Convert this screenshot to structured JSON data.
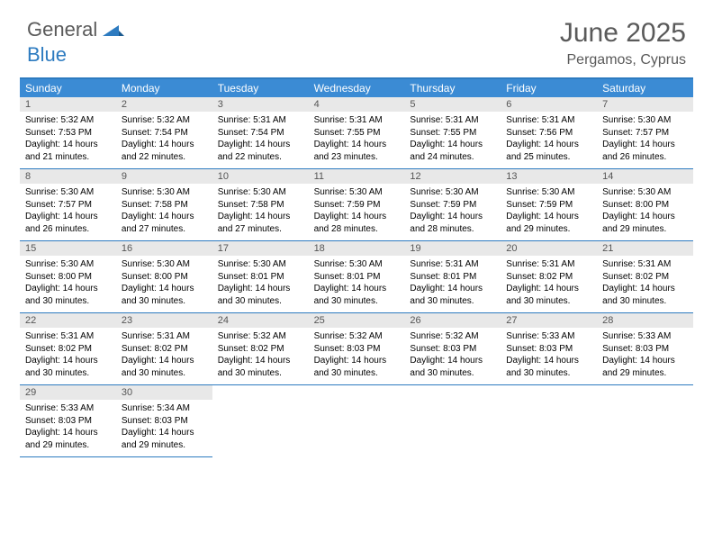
{
  "logo": {
    "text1": "General",
    "text2": "Blue"
  },
  "title": "June 2025",
  "location": "Pergamos, Cyprus",
  "colors": {
    "brand_blue": "#2d7bc0",
    "header_blue": "#3b8bd4",
    "gray_text": "#5a5a5a",
    "daynum_bg": "#e8e8e8"
  },
  "weekdays": [
    "Sunday",
    "Monday",
    "Tuesday",
    "Wednesday",
    "Thursday",
    "Friday",
    "Saturday"
  ],
  "days": [
    {
      "n": "1",
      "sr": "5:32 AM",
      "ss": "7:53 PM",
      "dl": "14 hours and 21 minutes."
    },
    {
      "n": "2",
      "sr": "5:32 AM",
      "ss": "7:54 PM",
      "dl": "14 hours and 22 minutes."
    },
    {
      "n": "3",
      "sr": "5:31 AM",
      "ss": "7:54 PM",
      "dl": "14 hours and 22 minutes."
    },
    {
      "n": "4",
      "sr": "5:31 AM",
      "ss": "7:55 PM",
      "dl": "14 hours and 23 minutes."
    },
    {
      "n": "5",
      "sr": "5:31 AM",
      "ss": "7:55 PM",
      "dl": "14 hours and 24 minutes."
    },
    {
      "n": "6",
      "sr": "5:31 AM",
      "ss": "7:56 PM",
      "dl": "14 hours and 25 minutes."
    },
    {
      "n": "7",
      "sr": "5:30 AM",
      "ss": "7:57 PM",
      "dl": "14 hours and 26 minutes."
    },
    {
      "n": "8",
      "sr": "5:30 AM",
      "ss": "7:57 PM",
      "dl": "14 hours and 26 minutes."
    },
    {
      "n": "9",
      "sr": "5:30 AM",
      "ss": "7:58 PM",
      "dl": "14 hours and 27 minutes."
    },
    {
      "n": "10",
      "sr": "5:30 AM",
      "ss": "7:58 PM",
      "dl": "14 hours and 27 minutes."
    },
    {
      "n": "11",
      "sr": "5:30 AM",
      "ss": "7:59 PM",
      "dl": "14 hours and 28 minutes."
    },
    {
      "n": "12",
      "sr": "5:30 AM",
      "ss": "7:59 PM",
      "dl": "14 hours and 28 minutes."
    },
    {
      "n": "13",
      "sr": "5:30 AM",
      "ss": "7:59 PM",
      "dl": "14 hours and 29 minutes."
    },
    {
      "n": "14",
      "sr": "5:30 AM",
      "ss": "8:00 PM",
      "dl": "14 hours and 29 minutes."
    },
    {
      "n": "15",
      "sr": "5:30 AM",
      "ss": "8:00 PM",
      "dl": "14 hours and 30 minutes."
    },
    {
      "n": "16",
      "sr": "5:30 AM",
      "ss": "8:00 PM",
      "dl": "14 hours and 30 minutes."
    },
    {
      "n": "17",
      "sr": "5:30 AM",
      "ss": "8:01 PM",
      "dl": "14 hours and 30 minutes."
    },
    {
      "n": "18",
      "sr": "5:30 AM",
      "ss": "8:01 PM",
      "dl": "14 hours and 30 minutes."
    },
    {
      "n": "19",
      "sr": "5:31 AM",
      "ss": "8:01 PM",
      "dl": "14 hours and 30 minutes."
    },
    {
      "n": "20",
      "sr": "5:31 AM",
      "ss": "8:02 PM",
      "dl": "14 hours and 30 minutes."
    },
    {
      "n": "21",
      "sr": "5:31 AM",
      "ss": "8:02 PM",
      "dl": "14 hours and 30 minutes."
    },
    {
      "n": "22",
      "sr": "5:31 AM",
      "ss": "8:02 PM",
      "dl": "14 hours and 30 minutes."
    },
    {
      "n": "23",
      "sr": "5:31 AM",
      "ss": "8:02 PM",
      "dl": "14 hours and 30 minutes."
    },
    {
      "n": "24",
      "sr": "5:32 AM",
      "ss": "8:02 PM",
      "dl": "14 hours and 30 minutes."
    },
    {
      "n": "25",
      "sr": "5:32 AM",
      "ss": "8:03 PM",
      "dl": "14 hours and 30 minutes."
    },
    {
      "n": "26",
      "sr": "5:32 AM",
      "ss": "8:03 PM",
      "dl": "14 hours and 30 minutes."
    },
    {
      "n": "27",
      "sr": "5:33 AM",
      "ss": "8:03 PM",
      "dl": "14 hours and 30 minutes."
    },
    {
      "n": "28",
      "sr": "5:33 AM",
      "ss": "8:03 PM",
      "dl": "14 hours and 29 minutes."
    },
    {
      "n": "29",
      "sr": "5:33 AM",
      "ss": "8:03 PM",
      "dl": "14 hours and 29 minutes."
    },
    {
      "n": "30",
      "sr": "5:34 AM",
      "ss": "8:03 PM",
      "dl": "14 hours and 29 minutes."
    }
  ],
  "labels": {
    "sunrise": "Sunrise:",
    "sunset": "Sunset:",
    "daylight": "Daylight:"
  }
}
